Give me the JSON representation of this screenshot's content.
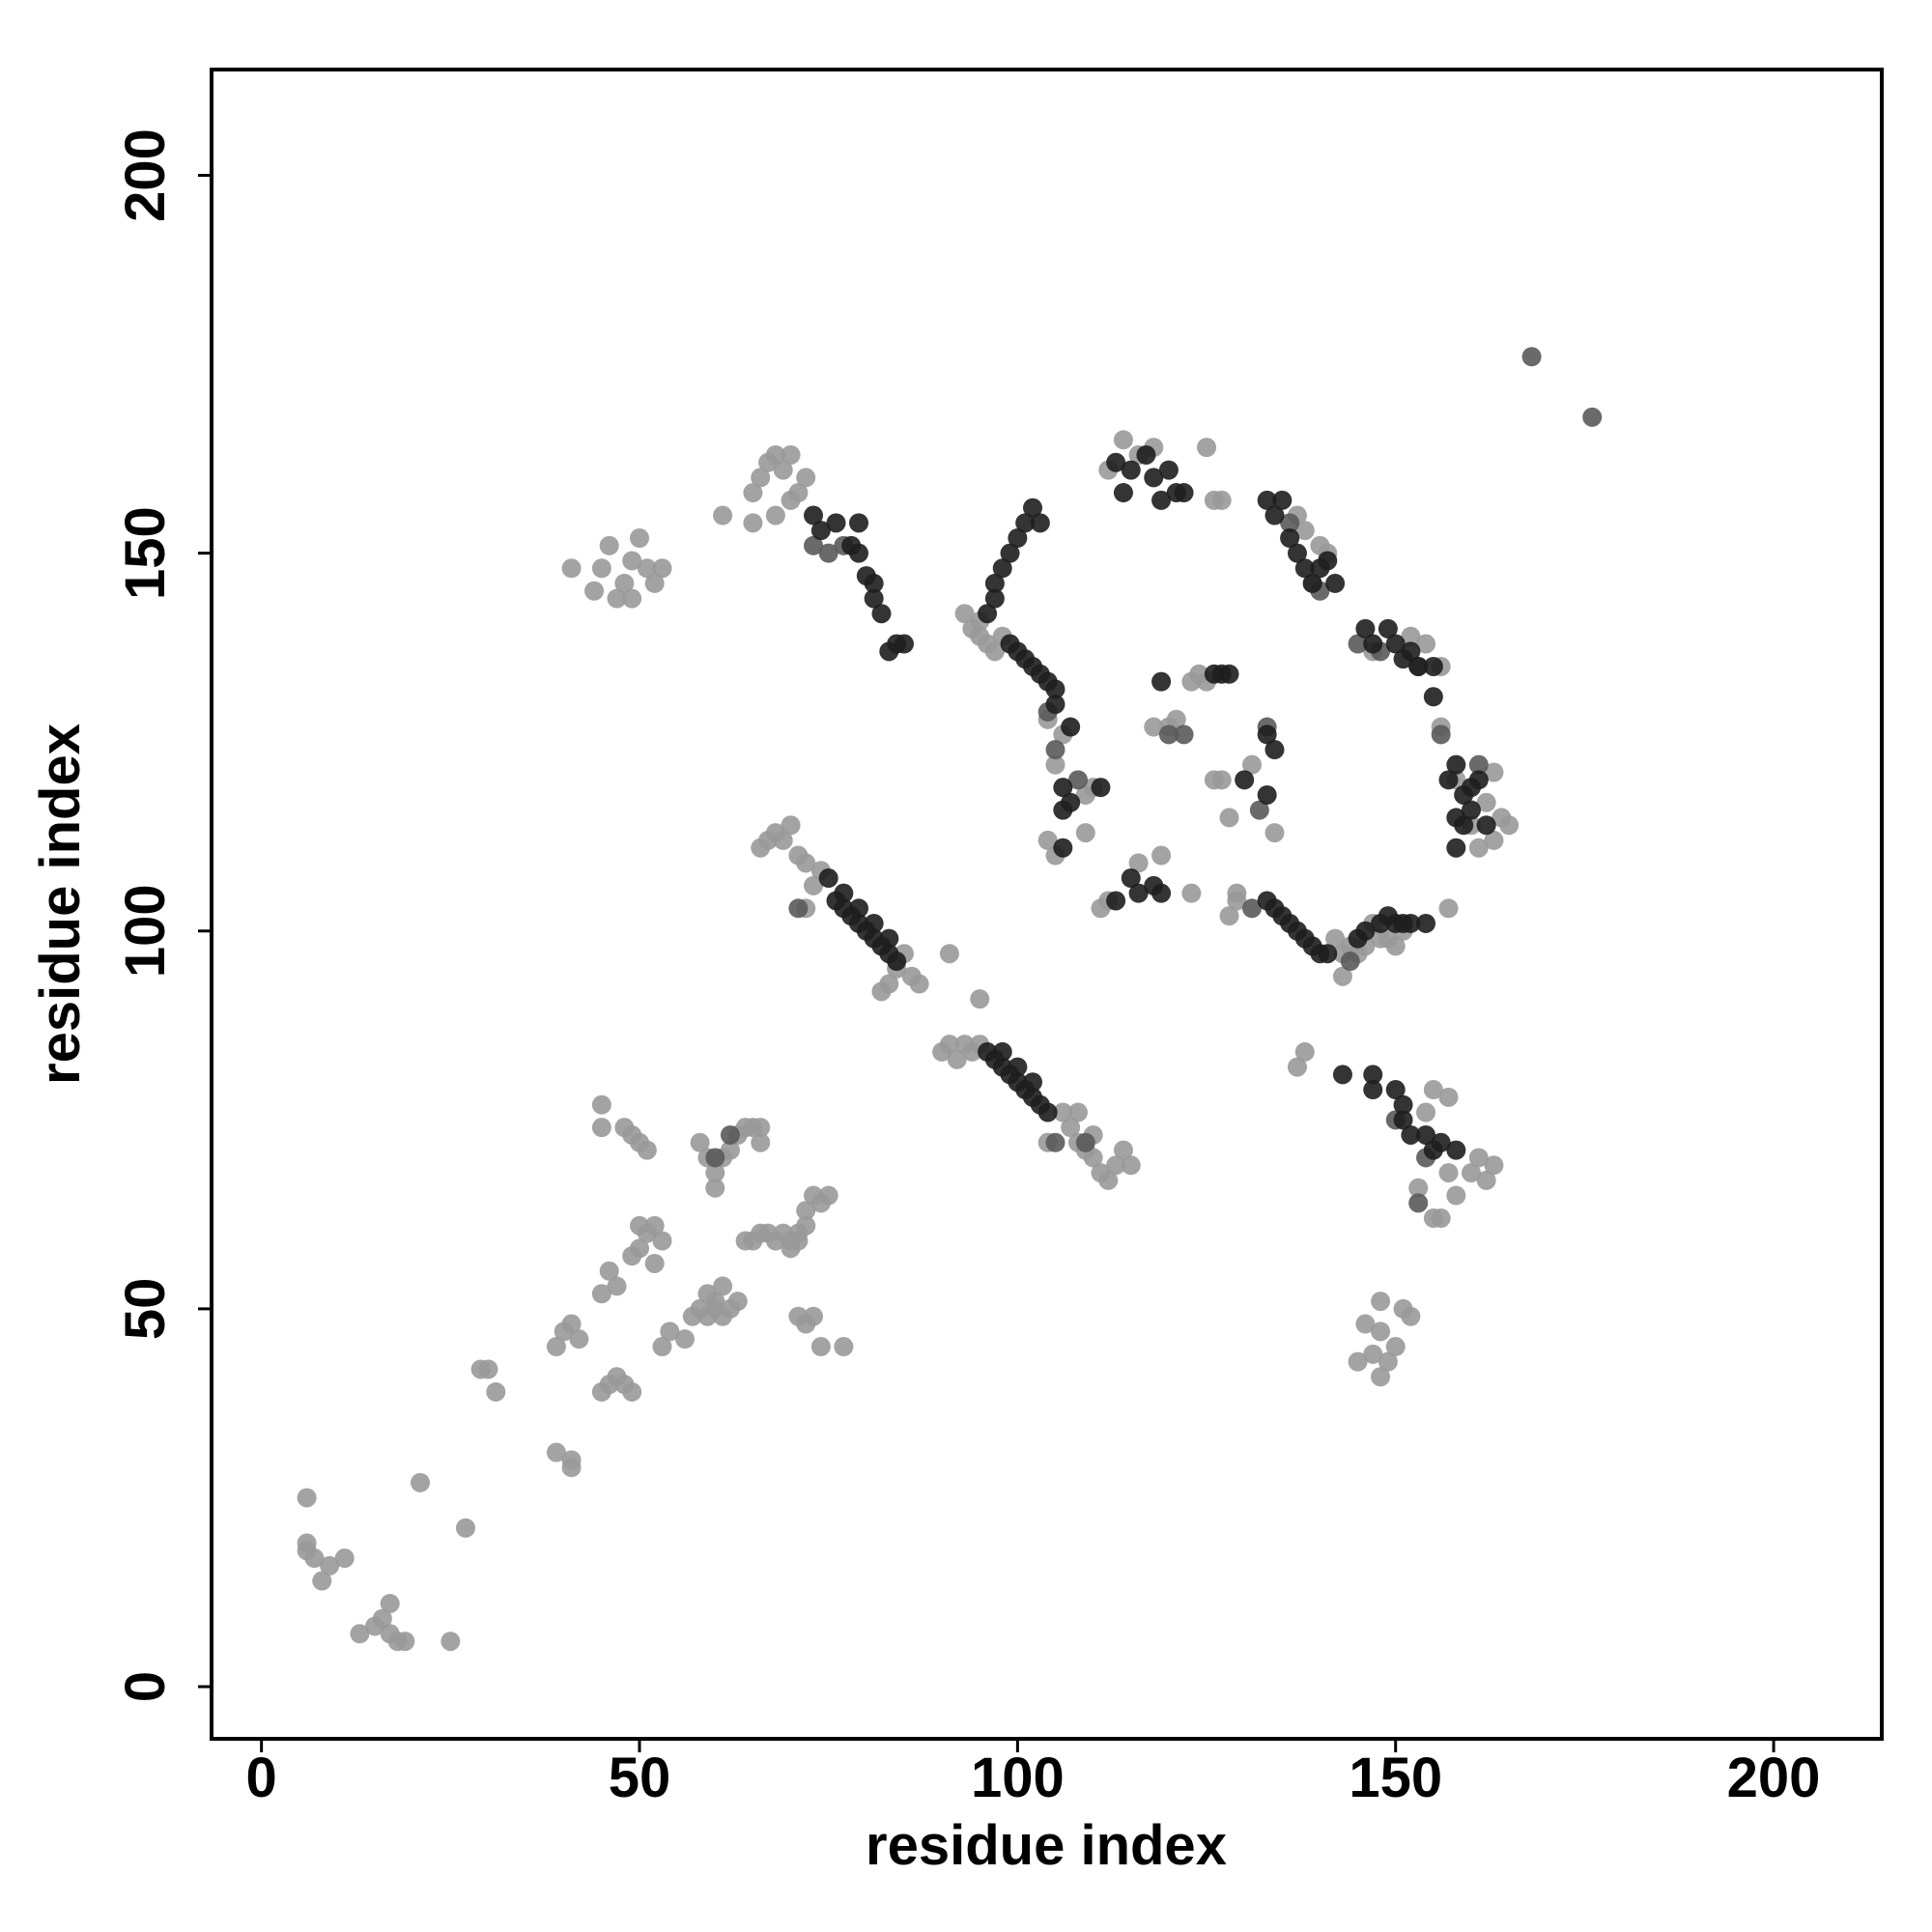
{
  "chart_data": {
    "type": "scatter",
    "xlabel": "residue index",
    "ylabel": "residue index",
    "xlim": [
      -6.6,
      214.3
    ],
    "ylim": [
      -6.9,
      214.0
    ],
    "xticks": [
      0,
      50,
      100,
      150,
      200
    ],
    "yticks": [
      0,
      50,
      100,
      150,
      200
    ],
    "series": [
      {
        "color": "#999999",
        "x": [
          6,
          6,
          6,
          7,
          8,
          9,
          11,
          13,
          15,
          16,
          17,
          17,
          18,
          19,
          21,
          25,
          27,
          29,
          30,
          31,
          39,
          41,
          41,
          39,
          40,
          41,
          42,
          45,
          46,
          47,
          48,
          49,
          45,
          46,
          47,
          49,
          50,
          51,
          50,
          52,
          53,
          52,
          53,
          54,
          56,
          57,
          58,
          59,
          60,
          61,
          62,
          63,
          59,
          60,
          61,
          45,
          45,
          48,
          49,
          50,
          51,
          58,
          59,
          60,
          60,
          61,
          62,
          63,
          64,
          65,
          66,
          66,
          64,
          65,
          66,
          67,
          68,
          69,
          70,
          71,
          72,
          72,
          73,
          74,
          75,
          71,
          72,
          73,
          74,
          77,
          71,
          70,
          41,
          44,
          45,
          46,
          47,
          48,
          49,
          50,
          51,
          52,
          53,
          49,
          61,
          65,
          66,
          67,
          68,
          69,
          70,
          71,
          72,
          65,
          68,
          70,
          66,
          67,
          68,
          69,
          70,
          71,
          72,
          73,
          74,
          82,
          83,
          84,
          85,
          86,
          87,
          72,
          91,
          95,
          90,
          91,
          92,
          93,
          94,
          95,
          106,
          107,
          108,
          109,
          110,
          111,
          112,
          113,
          114,
          115,
          104,
          108,
          110,
          93,
          94,
          95,
          96,
          97,
          98,
          95,
          104,
          105,
          106,
          104,
          105,
          109,
          109,
          110,
          111,
          112,
          116,
          119,
          120,
          121,
          118,
          123,
          123,
          124,
          125,
          126,
          127,
          125,
          126,
          127,
          128,
          128,
          129,
          129,
          112,
          114,
          116,
          118,
          134,
          131,
          137,
          138,
          139,
          140,
          141,
          142,
          143,
          143,
          144,
          145,
          146,
          147,
          148,
          149,
          150,
          151,
          156,
          158,
          160,
          162,
          163,
          164,
          165,
          163,
          161,
          152,
          154,
          156,
          157,
          147,
          137,
          138,
          153,
          155,
          156,
          157,
          158,
          160,
          161,
          162,
          163,
          157,
          155,
          154,
          148,
          148,
          147,
          146,
          145,
          150,
          151,
          152,
          148,
          149
        ],
        "values": [
          25,
          19,
          18,
          17,
          14,
          16,
          17,
          7,
          8,
          9,
          11,
          7,
          6,
          6,
          27,
          6,
          21,
          42,
          42,
          39,
          31,
          29,
          30,
          45,
          47,
          48,
          46,
          39,
          40,
          41,
          40,
          39,
          52,
          55,
          53,
          57,
          58,
          60,
          61,
          61,
          59,
          56,
          45,
          47,
          46,
          49,
          50,
          52,
          51,
          53,
          50,
          51,
          49,
          50,
          49,
          77,
          74,
          74,
          73,
          72,
          71,
          72,
          70,
          66,
          68,
          70,
          71,
          73,
          74,
          74,
          72,
          74,
          59,
          59,
          60,
          60,
          59,
          60,
          58,
          60,
          61,
          63,
          65,
          64,
          65,
          49,
          48,
          49,
          45,
          45,
          59,
          59,
          148,
          145,
          148,
          151,
          144,
          146,
          149,
          152,
          148,
          146,
          148,
          144,
          155,
          158,
          160,
          162,
          163,
          161,
          163,
          158,
          160,
          154,
          155,
          157,
          111,
          112,
          113,
          112,
          114,
          110,
          109,
          106,
          108,
          92,
          93,
          95,
          97,
          94,
          93,
          103,
          97,
          91,
          84,
          85,
          83,
          85,
          84,
          85,
          76,
          74,
          72,
          71,
          70,
          68,
          67,
          69,
          71,
          69,
          72,
          76,
          73,
          142,
          140,
          141,
          138,
          137,
          139,
          139,
          128,
          122,
          126,
          112,
          110,
          113,
          118,
          119,
          103,
          104,
          109,
          110,
          127,
          128,
          127,
          105,
          133,
          134,
          133,
          157,
          157,
          164,
          120,
          120,
          115,
          102,
          104,
          105,
          161,
          165,
          163,
          164,
          113,
          122,
          155,
          153,
          146,
          151,
          150,
          99,
          94,
          97,
          98,
          97,
          98,
          101,
          99,
          99,
          98,
          100,
          127,
          120,
          114,
          117,
          121,
          115,
          114,
          112,
          111,
          139,
          138,
          135,
          103,
          137,
          82,
          84,
          66,
          62,
          62,
          68,
          65,
          68,
          70,
          67,
          69,
          78,
          79,
          76,
          51,
          47,
          44,
          48,
          43,
          45,
          50,
          49,
          41,
          43
        ]
      },
      {
        "color": "#5a5a5a",
        "x": [
          73,
          75,
          77,
          104,
          105,
          108,
          136,
          140,
          145,
          153,
          156,
          161,
          148,
          150,
          154,
          153,
          71,
          105,
          109,
          122,
          131,
          132,
          133,
          144,
          120,
          60,
          62,
          168,
          176
        ],
        "values": [
          151,
          150,
          151,
          129,
          124,
          120,
          154,
          145,
          138,
          135,
          126,
          122,
          137,
          75,
          70,
          64,
          103,
          72,
          72,
          126,
          103,
          116,
          127,
          96,
          126,
          70,
          73,
          176,
          168
        ]
      },
      {
        "color": "#1e1e1e",
        "x": [
          73,
          74,
          76,
          78,
          79,
          79,
          80,
          81,
          81,
          82,
          83,
          84,
          85,
          75,
          76,
          77,
          78,
          79,
          80,
          81,
          82,
          83,
          84,
          77,
          79,
          81,
          83,
          96,
          97,
          98,
          99,
          100,
          101,
          102,
          103,
          104,
          98,
          100,
          102,
          97,
          98,
          99,
          100,
          101,
          102,
          103,
          97,
          96,
          99,
          100,
          101,
          102,
          103,
          104,
          105,
          105,
          106,
          106,
          107,
          106,
          111,
          107,
          113,
          115,
          116,
          118,
          119,
          114,
          113,
          115,
          117,
          118,
          119,
          120,
          121,
          122,
          119,
          126,
          127,
          128,
          130,
          133,
          134,
          133,
          133,
          134,
          135,
          136,
          137,
          138,
          139,
          140,
          141,
          145,
          146,
          148,
          149,
          150,
          151,
          152,
          154,
          133,
          134,
          135,
          136,
          137,
          138,
          139,
          140,
          141,
          142,
          146,
          147,
          149,
          150,
          151,
          152,
          153,
          155,
          155,
          157,
          158,
          159,
          160,
          161,
          159,
          160,
          162,
          158,
          158,
          143,
          147,
          147,
          150,
          151,
          151,
          152,
          154,
          155,
          156,
          158
        ],
        "values": [
          155,
          153,
          154,
          151,
          154,
          150,
          147,
          146,
          144,
          142,
          137,
          138,
          138,
          107,
          104,
          103,
          102,
          101,
          100,
          99,
          98,
          97,
          96,
          105,
          103,
          101,
          99,
          84,
          83,
          82,
          81,
          80,
          79,
          78,
          77,
          76,
          84,
          82,
          80,
          146,
          148,
          150,
          152,
          154,
          156,
          154,
          144,
          142,
          138,
          137,
          136,
          135,
          134,
          133,
          132,
          130,
          119,
          116,
          117,
          111,
          119,
          127,
          104,
          107,
          105,
          106,
          105,
          158,
          162,
          161,
          163,
          160,
          157,
          161,
          158,
          158,
          133,
          134,
          134,
          134,
          120,
          126,
          124,
          118,
          104,
          103,
          102,
          101,
          100,
          99,
          98,
          97,
          97,
          99,
          100,
          101,
          102,
          101,
          101,
          101,
          101,
          157,
          155,
          157,
          152,
          150,
          148,
          146,
          148,
          149,
          146,
          140,
          138,
          140,
          138,
          136,
          137,
          135,
          135,
          131,
          120,
          122,
          118,
          119,
          120,
          114,
          116,
          114,
          115,
          111,
          81,
          81,
          79,
          79,
          77,
          75,
          73,
          73,
          71,
          72,
          71
        ]
      }
    ]
  }
}
